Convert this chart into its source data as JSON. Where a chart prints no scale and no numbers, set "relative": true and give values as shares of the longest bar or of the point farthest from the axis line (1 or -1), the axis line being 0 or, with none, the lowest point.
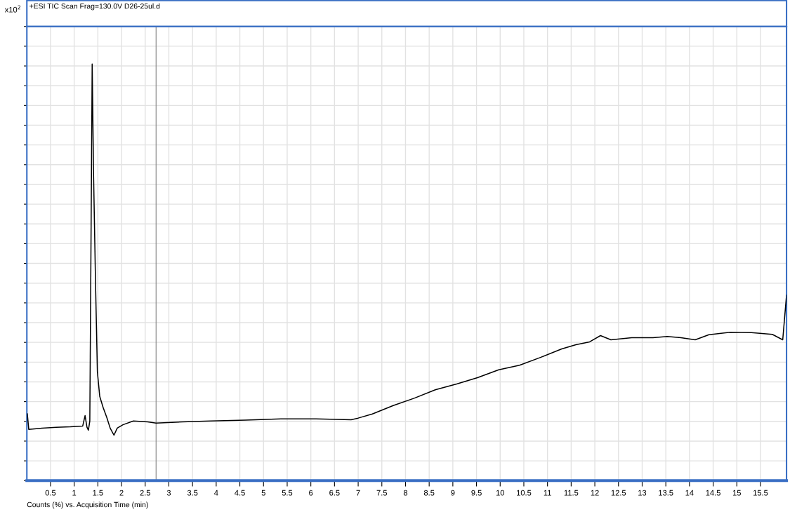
{
  "chart_data": {
    "type": "line",
    "title": "+ESI TIC Scan Frag=130.0V D26-25ul.d",
    "xlabel": "Counts (%) vs. Acquisition Time (min)",
    "annotations": [
      "x10$^{2}$"
    ],
    "relative": true,
    "x": [
      0.01,
      0.04,
      0.32,
      0.62,
      0.92,
      1.18,
      1.23,
      1.27,
      1.3,
      1.33,
      1.35,
      1.38,
      1.41,
      1.45,
      1.49,
      1.54,
      1.61,
      1.69,
      1.76,
      1.84,
      1.91,
      2.03,
      2.25,
      2.55,
      2.73,
      3.29,
      3.88,
      4.62,
      5.37,
      6.11,
      6.85,
      7.0,
      7.3,
      7.74,
      8.19,
      8.63,
      9.08,
      9.52,
      9.97,
      10.41,
      10.86,
      11.3,
      11.6,
      11.89,
      12.12,
      12.34,
      12.78,
      13.23,
      13.53,
      13.82,
      14.12,
      14.41,
      14.86,
      15.31,
      15.75,
      15.97,
      16.05
    ],
    "series": [
      {
        "color": "#000000",
        "values": [
          0.16,
          0.123,
          0.126,
          0.128,
          0.129,
          0.131,
          0.156,
          0.128,
          0.121,
          0.143,
          0.479,
          1,
          0.731,
          0.479,
          0.261,
          0.202,
          0.176,
          0.151,
          0.126,
          0.109,
          0.126,
          0.134,
          0.143,
          0.141,
          0.138,
          0.141,
          0.143,
          0.145,
          0.148,
          0.148,
          0.146,
          0.15,
          0.16,
          0.18,
          0.198,
          0.218,
          0.232,
          0.247,
          0.266,
          0.277,
          0.296,
          0.316,
          0.326,
          0.333,
          0.348,
          0.338,
          0.343,
          0.343,
          0.346,
          0.343,
          0.338,
          0.35,
          0.356,
          0.355,
          0.351,
          0.338,
          0.445
        ]
      }
    ],
    "xlim": [
      0,
      16.05
    ],
    "xticks": [
      0.5,
      1,
      1.5,
      2,
      2.5,
      3,
      3.5,
      4,
      4.5,
      5,
      5.5,
      6,
      6.5,
      7,
      7.5,
      8,
      8.5,
      9,
      9.5,
      10,
      10.5,
      11,
      11.5,
      12,
      12.5,
      13,
      13.5,
      14,
      14.5,
      15,
      15.5
    ],
    "ref_lines": [
      {
        "axis": "x",
        "value": 2.73,
        "color": "#808080"
      }
    ],
    "grid": true,
    "tick_labels": "x",
    "line_style": "solid",
    "marker": "none"
  }
}
